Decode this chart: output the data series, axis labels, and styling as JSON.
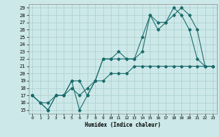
{
  "title": "",
  "xlabel": "Humidex (Indice chaleur)",
  "xlim": [
    -0.5,
    23.5
  ],
  "ylim": [
    14.5,
    29.5
  ],
  "xticks": [
    0,
    1,
    2,
    3,
    4,
    5,
    6,
    7,
    8,
    9,
    10,
    11,
    12,
    13,
    14,
    15,
    16,
    17,
    18,
    19,
    20,
    21,
    22,
    23
  ],
  "yticks": [
    15,
    16,
    17,
    18,
    19,
    20,
    21,
    22,
    23,
    24,
    25,
    26,
    27,
    28,
    29
  ],
  "background_color": "#cce8e8",
  "grid_color": "#aacccc",
  "line_color": "#1a6b6b",
  "line1_x": [
    0,
    1,
    2,
    3,
    4,
    5,
    6,
    7,
    8,
    9,
    10,
    11,
    12,
    13,
    14,
    15,
    16,
    17,
    18,
    19,
    20,
    21,
    22,
    23
  ],
  "line1_y": [
    17,
    16,
    15,
    17,
    17,
    19,
    15,
    17,
    19,
    22,
    22,
    22,
    22,
    22,
    25,
    28,
    27,
    27,
    29,
    28,
    26,
    22,
    21,
    21
  ],
  "line2_x": [
    0,
    2,
    3,
    4,
    5,
    6,
    7,
    8,
    9,
    10,
    11,
    12,
    13,
    14,
    15,
    16,
    17,
    18,
    19,
    20,
    21,
    22,
    23
  ],
  "line2_y": [
    17,
    15,
    17,
    17,
    19,
    19,
    17,
    19,
    22,
    22,
    23,
    22,
    22,
    23,
    28,
    26,
    27,
    28,
    29,
    28,
    26,
    21,
    21
  ],
  "line3_x": [
    0,
    1,
    2,
    3,
    4,
    5,
    6,
    7,
    8,
    9,
    10,
    11,
    12,
    13,
    14,
    15,
    16,
    17,
    18,
    19,
    20,
    21,
    22,
    23
  ],
  "line3_y": [
    17,
    16,
    16,
    17,
    17,
    18,
    17,
    18,
    19,
    19,
    20,
    20,
    20,
    21,
    21,
    21,
    21,
    21,
    21,
    21,
    21,
    21,
    21,
    21
  ]
}
